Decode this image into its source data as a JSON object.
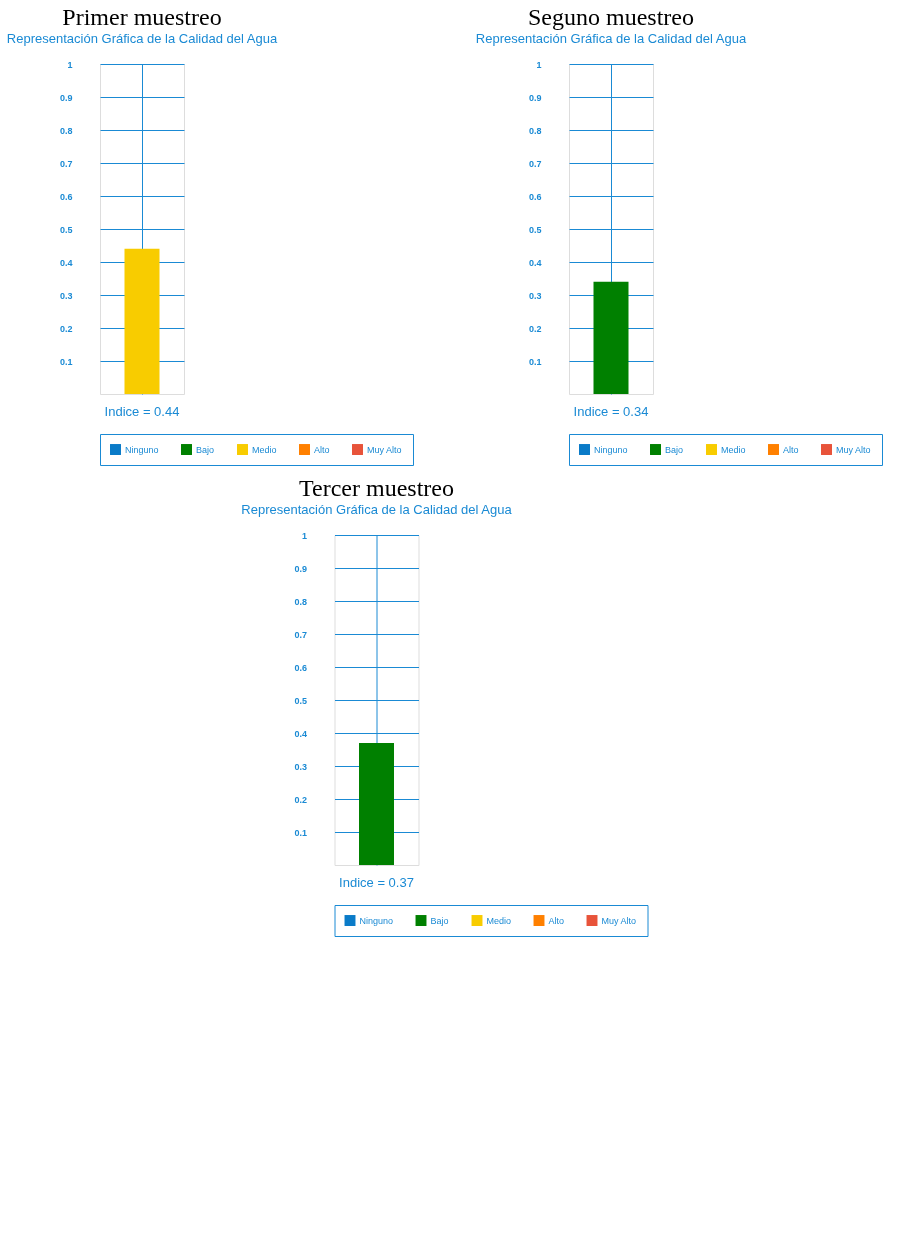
{
  "chart_data": [
    {
      "type": "bar",
      "title": "Primer muestreo",
      "subtitle": "Representación Gráfica de la Calidad del Agua",
      "categories": [
        null
      ],
      "series": [
        {
          "name": "Ninguno",
          "color": "#0a7bc8",
          "values": [
            null
          ]
        },
        {
          "name": "Bajo",
          "color": "#008000",
          "values": [
            null
          ]
        },
        {
          "name": "Medio",
          "color": "#f8cc00",
          "values": [
            0.44
          ]
        },
        {
          "name": "Alto",
          "color": "#ff8000",
          "values": [
            null
          ]
        },
        {
          "name": "Muy Alto",
          "color": "#e8533a",
          "values": [
            null
          ]
        }
      ],
      "ylim": [
        0,
        1
      ],
      "yticks": [
        0.1,
        0.2,
        0.3,
        0.4,
        0.5,
        0.6,
        0.7,
        0.8,
        0.9,
        1
      ],
      "grid": true,
      "legend": "bottom",
      "tick_labels": "y",
      "annotations": [
        "Indice = 0.44"
      ]
    },
    {
      "type": "bar",
      "title": "Seguno muestreo",
      "subtitle": "Representación Gráfica de la Calidad del Agua",
      "categories": [
        null
      ],
      "series": [
        {
          "name": "Ninguno",
          "color": "#0a7bc8",
          "values": [
            null
          ]
        },
        {
          "name": "Bajo",
          "color": "#008000",
          "values": [
            0.34
          ]
        },
        {
          "name": "Medio",
          "color": "#f8cc00",
          "values": [
            null
          ]
        },
        {
          "name": "Alto",
          "color": "#ff8000",
          "values": [
            null
          ]
        },
        {
          "name": "Muy Alto",
          "color": "#e8533a",
          "values": [
            null
          ]
        }
      ],
      "ylim": [
        0,
        1
      ],
      "yticks": [
        0.1,
        0.2,
        0.3,
        0.4,
        0.5,
        0.6,
        0.7,
        0.8,
        0.9,
        1
      ],
      "grid": true,
      "legend": "bottom",
      "tick_labels": "y",
      "annotations": [
        "Indice = 0.34"
      ]
    },
    {
      "type": "bar",
      "title": "Tercer muestreo",
      "subtitle": "Representación Gráfica de la Calidad del Agua",
      "categories": [
        null
      ],
      "series": [
        {
          "name": "Ninguno",
          "color": "#0a7bc8",
          "values": [
            null
          ]
        },
        {
          "name": "Bajo",
          "color": "#008000",
          "values": [
            0.37
          ]
        },
        {
          "name": "Medio",
          "color": "#f8cc00",
          "values": [
            null
          ]
        },
        {
          "name": "Alto",
          "color": "#ff8000",
          "values": [
            null
          ]
        },
        {
          "name": "Muy Alto",
          "color": "#e8533a",
          "values": [
            null
          ]
        }
      ],
      "ylim": [
        0,
        1
      ],
      "yticks": [
        0.1,
        0.2,
        0.3,
        0.4,
        0.5,
        0.6,
        0.7,
        0.8,
        0.9,
        1
      ],
      "grid": true,
      "legend": "bottom",
      "tick_labels": "y",
      "annotations": [
        "Indice = 0.37"
      ]
    }
  ]
}
